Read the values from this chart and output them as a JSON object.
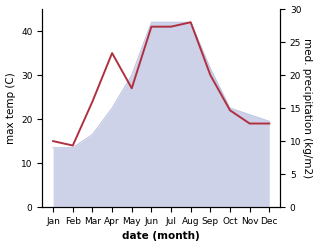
{
  "months": [
    "Jan",
    "Feb",
    "Mar",
    "Apr",
    "May",
    "Jun",
    "Jul",
    "Aug",
    "Sep",
    "Oct",
    "Nov",
    "Dec"
  ],
  "temperature": [
    15,
    14,
    24,
    35,
    27,
    41,
    41,
    42,
    30,
    22,
    19,
    19
  ],
  "precipitation": [
    9,
    9,
    11,
    15,
    20,
    28,
    28,
    28,
    21,
    15,
    14,
    13
  ],
  "temp_color": "#b03040",
  "precip_color": "#b8c0e0",
  "precip_alpha": 0.7,
  "ylabel_left": "max temp (C)",
  "ylabel_right": "med. precipitation (kg/m2)",
  "xlabel": "date (month)",
  "ylim_left": [
    0,
    45
  ],
  "ylim_right": [
    0,
    30
  ],
  "yticks_left": [
    0,
    10,
    20,
    30,
    40
  ],
  "yticks_right": [
    0,
    5,
    10,
    15,
    20,
    25,
    30
  ],
  "background_color": "#ffffff",
  "label_fontsize": 7.5,
  "tick_fontsize": 6.5,
  "line_width": 1.4
}
